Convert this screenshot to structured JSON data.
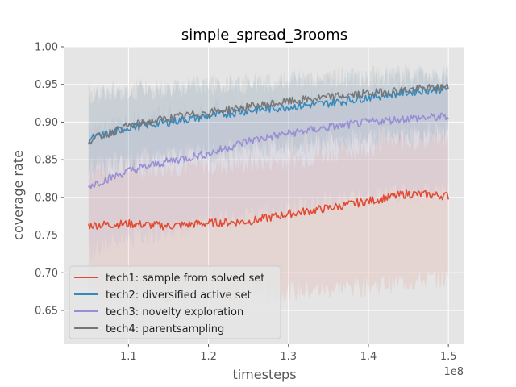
{
  "chart_data": {
    "type": "line",
    "title": "simple_spread_3rooms",
    "xlabel": "timesteps",
    "ylabel": "coverage rate",
    "x_offset_label": "1e8",
    "x_range": [
      1.05,
      1.5
    ],
    "xlim": [
      1.02,
      1.52
    ],
    "ylim": [
      0.605,
      1.0
    ],
    "x_ticks": [
      "1.1",
      "1.2",
      "1.3",
      "1.4",
      "1.5"
    ],
    "y_ticks": [
      "0.65",
      "0.70",
      "0.75",
      "0.80",
      "0.85",
      "0.90",
      "0.95",
      "1.00"
    ],
    "grid": true,
    "legend_position": "lower left",
    "series": [
      {
        "name": "tech1: sample from solved set",
        "color": "#E24A33",
        "x": [
          1.05,
          1.1,
          1.15,
          1.2,
          1.25,
          1.3,
          1.35,
          1.4,
          1.45,
          1.5
        ],
        "y": [
          0.763,
          0.765,
          0.762,
          0.766,
          0.768,
          0.778,
          0.786,
          0.795,
          0.805,
          0.802
        ],
        "band_low": [
          0.672,
          0.672,
          0.672,
          0.672,
          0.672,
          0.675,
          0.678,
          0.682,
          0.688,
          0.692
        ],
        "band_high": [
          0.835,
          0.838,
          0.84,
          0.842,
          0.845,
          0.85,
          0.858,
          0.868,
          0.875,
          0.878
        ]
      },
      {
        "name": "tech2: diversified active set",
        "color": "#348ABD",
        "x": [
          1.05,
          1.1,
          1.15,
          1.2,
          1.25,
          1.3,
          1.35,
          1.4,
          1.45,
          1.5
        ],
        "y": [
          0.877,
          0.893,
          0.9,
          0.908,
          0.915,
          0.92,
          0.925,
          0.933,
          0.94,
          0.945
        ],
        "band_low": [
          0.84,
          0.85,
          0.855,
          0.86,
          0.865,
          0.87,
          0.875,
          0.88,
          0.885,
          0.89
        ],
        "band_high": [
          0.935,
          0.94,
          0.945,
          0.948,
          0.952,
          0.955,
          0.958,
          0.96,
          0.962,
          0.965
        ]
      },
      {
        "name": "tech3: novelty exploration",
        "color": "#988ED5",
        "x": [
          1.05,
          1.1,
          1.15,
          1.2,
          1.25,
          1.3,
          1.35,
          1.4,
          1.45,
          1.5
        ],
        "y": [
          0.815,
          0.835,
          0.848,
          0.858,
          0.875,
          0.885,
          0.893,
          0.9,
          0.905,
          0.907
        ],
        "band_low": [
          0.73,
          0.745,
          0.755,
          0.765,
          0.775,
          0.785,
          0.795,
          0.8,
          0.805,
          0.81
        ],
        "band_high": [
          0.89,
          0.9,
          0.91,
          0.915,
          0.92,
          0.925,
          0.932,
          0.938,
          0.945,
          0.95
        ]
      },
      {
        "name": "tech4: parentsampling",
        "color": "#777777",
        "x": [
          1.05,
          1.1,
          1.15,
          1.2,
          1.25,
          1.3,
          1.35,
          1.4,
          1.45,
          1.5
        ],
        "y": [
          0.875,
          0.895,
          0.905,
          0.913,
          0.92,
          0.927,
          0.933,
          0.938,
          0.943,
          0.946
        ],
        "band_low": [
          0.835,
          0.845,
          0.852,
          0.858,
          0.863,
          0.868,
          0.873,
          0.878,
          0.882,
          0.886
        ],
        "band_high": [
          0.94,
          0.945,
          0.948,
          0.95,
          0.953,
          0.955,
          0.958,
          0.96,
          0.962,
          0.965
        ]
      }
    ]
  }
}
